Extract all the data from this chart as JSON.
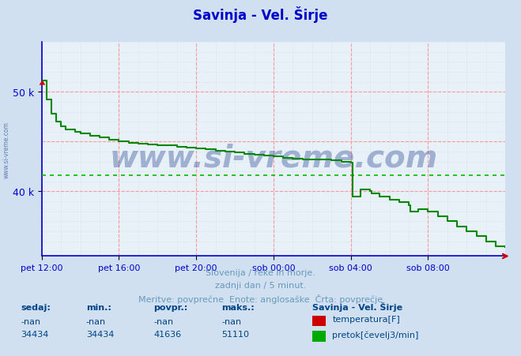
{
  "title": "Savinja - Vel. Širje",
  "bg_color": "#d0e0f0",
  "plot_bg_color": "#e8f0f8",
  "grid_color_major": "#ff9999",
  "grid_color_minor": "#ccddee",
  "line_color": "#008800",
  "avg_line_color": "#00bb00",
  "axis_color": "#0000cc",
  "title_color": "#0000cc",
  "watermark_color": "#1a3a8a",
  "watermark_text": "www.si-vreme.com",
  "watermark_alpha": 0.35,
  "ylim": [
    33500,
    55000
  ],
  "xlim_hours": [
    0,
    24
  ],
  "xtick_labels": [
    "pet 12:00",
    "pet 16:00",
    "pet 20:00",
    "sob 00:00",
    "sob 04:00",
    "sob 08:00"
  ],
  "xtick_positions": [
    0,
    4,
    8,
    12,
    16,
    20
  ],
  "ytick_positions": [
    40000,
    50000
  ],
  "ytick_labels": [
    "40 k",
    "50 k"
  ],
  "avg_value": 41636,
  "subtitle1": "Slovenija / reke in morje.",
  "subtitle2": "zadnji dan / 5 minut.",
  "subtitle3": "Meritve: povprečne  Enote: anglosaške  Črta: povprečje",
  "subtitle_color": "#6699bb",
  "footer_color": "#004488",
  "table_headers": [
    "sedaj:",
    "min.:",
    "povpr.:",
    "maks.:"
  ],
  "table_row1": [
    "-nan",
    "-nan",
    "-nan",
    "-nan"
  ],
  "table_row2": [
    "34434",
    "34434",
    "41636",
    "51110"
  ],
  "legend_title": "Savinja - Vel. Širje",
  "legend_temp_label": "temperatura[F]",
  "legend_flow_label": "pretok[čevelj3/min]",
  "temp_color": "#cc0000",
  "flow_color": "#00aa00",
  "data_x": [
    0.0,
    0.08,
    0.25,
    0.5,
    0.75,
    1.0,
    1.25,
    1.5,
    1.75,
    2.0,
    2.5,
    3.0,
    3.5,
    4.0,
    4.5,
    5.0,
    5.5,
    6.0,
    7.0,
    7.5,
    8.0,
    8.5,
    9.0,
    9.5,
    10.0,
    10.5,
    11.0,
    11.5,
    12.0,
    12.5,
    13.0,
    13.5,
    14.0,
    14.5,
    15.0,
    15.5,
    16.0,
    16.08,
    16.5,
    17.0,
    17.08,
    17.5,
    18.0,
    18.5,
    19.0,
    19.08,
    19.5,
    20.0,
    20.5,
    21.0,
    21.5,
    22.0,
    22.5,
    23.0,
    23.5,
    23.99
  ],
  "data_y": [
    51110,
    51110,
    49200,
    47800,
    47000,
    46500,
    46200,
    46200,
    46000,
    45800,
    45600,
    45400,
    45200,
    45000,
    44900,
    44800,
    44700,
    44600,
    44500,
    44400,
    44300,
    44200,
    44100,
    44000,
    43900,
    43800,
    43700,
    43600,
    43500,
    43400,
    43300,
    43200,
    43200,
    43200,
    43100,
    43000,
    42900,
    39500,
    40200,
    40000,
    39800,
    39500,
    39200,
    38900,
    38600,
    38000,
    38200,
    38000,
    37500,
    37000,
    36500,
    36000,
    35500,
    35000,
    34500,
    34434
  ]
}
